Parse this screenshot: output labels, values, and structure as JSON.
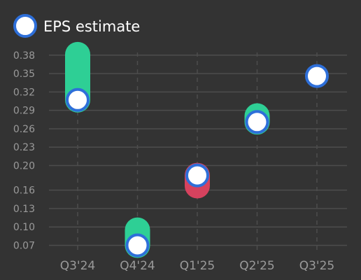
{
  "chart_data": {
    "type": "scatter",
    "categories": [
      "Q3'24",
      "Q4'24",
      "Q1'25",
      "Q2'25",
      "Q3'25"
    ],
    "series": [
      {
        "name": "EPS estimate",
        "values": [
          0.307,
          0.07,
          0.184,
          0.271,
          0.346
        ]
      },
      {
        "name": "",
        "values": [
          0.381,
          0.095,
          0.167,
          0.281,
          null
        ]
      }
    ],
    "y_ticks": [
      "0.38",
      "0.35",
      "0.32",
      "0.29",
      "0.26",
      "0.23",
      "0.20",
      "0.16",
      "0.13",
      "0.10",
      "0.07"
    ],
    "ylim": [
      0.058,
      0.398
    ],
    "legend": {
      "label": "EPS estimate",
      "position": "top-left"
    },
    "grid": {
      "horizontal": true,
      "vertical_dashed": true
    },
    "colors": {
      "background": "#333333",
      "grid": "#4d4d4d",
      "tick_text": "#9a9a9a",
      "marker_fill": "#ffffff",
      "marker_stroke": "#2e6fd9",
      "beat": "#2ecf95",
      "miss": "#d6425e"
    }
  }
}
